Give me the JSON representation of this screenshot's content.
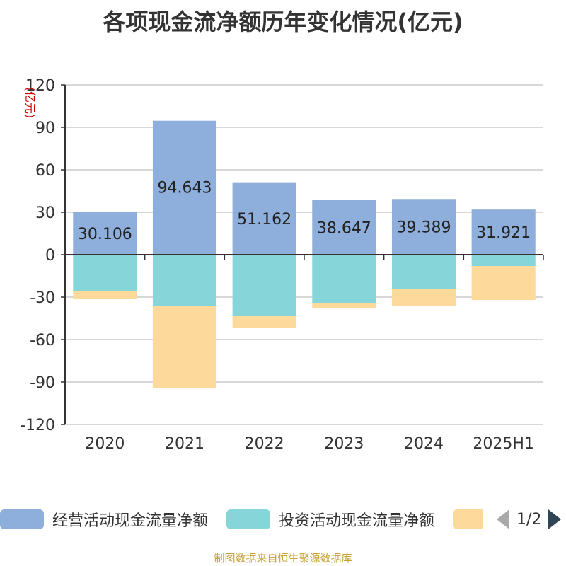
{
  "title": "各项现金流净额历年变化情况(亿元)",
  "source": "制图数据来自恒生聚源数据库",
  "pager": {
    "text": "1/2"
  },
  "colors": {
    "operating": "#8eaedb",
    "investing": "#86d5d8",
    "financing": "#fdd99b"
  },
  "chart_data": {
    "type": "bar",
    "stacked": true,
    "title": "各项现金流净额历年变化情况(亿元)",
    "ylabel": "(亿元)",
    "ylim": [
      -120,
      120
    ],
    "yticks": [
      120,
      90,
      60,
      30,
      0,
      -30,
      -60,
      -90,
      -120
    ],
    "grid": true,
    "legend_position": "bottom",
    "categories": [
      "2020",
      "2021",
      "2022",
      "2023",
      "2024",
      "2025H1"
    ],
    "series": [
      {
        "name": "经营活动现金流量净额",
        "values": [
          30.106,
          94.643,
          51.162,
          38.647,
          39.389,
          31.921
        ],
        "labels": [
          "30.106",
          "94.643",
          "51.162",
          "38.647",
          "39.389",
          "31.921"
        ]
      },
      {
        "name": "投资活动现金流量净额",
        "values": [
          -25.5,
          -36.5,
          -43.5,
          -34,
          -24,
          -8
        ]
      },
      {
        "name": "",
        "values": [
          -5.5,
          -57.5,
          -8.5,
          -3.5,
          -12,
          -24
        ]
      }
    ]
  }
}
